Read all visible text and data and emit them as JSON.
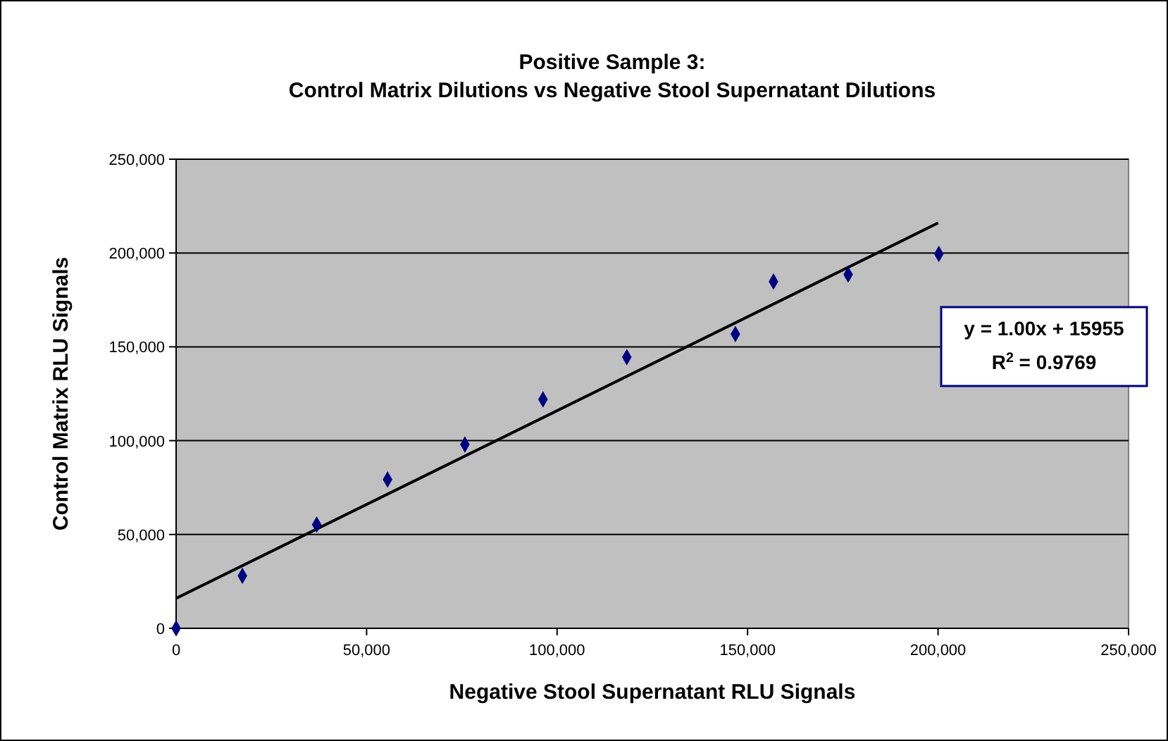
{
  "chart_data": {
    "type": "scatter",
    "title": "Positive Sample 3:\nControl Matrix Dilutions vs Negative Stool Supernatant Dilutions",
    "xlabel": "Negative Stool Supernatant RLU Signals",
    "ylabel": "Control Matrix RLU Signals",
    "xlim": [
      0,
      250000
    ],
    "ylim": [
      0,
      250000
    ],
    "xticks": [
      {
        "value": 0,
        "label": "0"
      },
      {
        "value": 50000,
        "label": "50,000"
      },
      {
        "value": 100000,
        "label": "100,000"
      },
      {
        "value": 150000,
        "label": "150,000"
      },
      {
        "value": 200000,
        "label": "200,000"
      },
      {
        "value": 250000,
        "label": "250,000"
      }
    ],
    "yticks": [
      {
        "value": 0,
        "label": "0"
      },
      {
        "value": 50000,
        "label": "50,000"
      },
      {
        "value": 100000,
        "label": "100,000"
      },
      {
        "value": 150000,
        "label": "150,000"
      },
      {
        "value": 200000,
        "label": "200,000"
      },
      {
        "value": 250000,
        "label": "250,000"
      }
    ],
    "grid": "y",
    "series": [
      {
        "marker": "diamond",
        "color": "#000080",
        "x": [
          0,
          17400,
          36900,
          55500,
          75800,
          96300,
          118300,
          146800,
          156800,
          176400,
          200200
        ],
        "values": [
          0,
          28000,
          55300,
          79300,
          98000,
          122000,
          144500,
          156800,
          184800,
          188500,
          199500
        ]
      },
      {
        "type": "line",
        "marker": "none",
        "color": "#000000",
        "x": [
          0,
          200000
        ],
        "values": [
          16000,
          216000
        ]
      }
    ],
    "annotations": [
      "y = 1.00x + 15955",
      "R$^{2}$ = 0.9769"
    ]
  }
}
